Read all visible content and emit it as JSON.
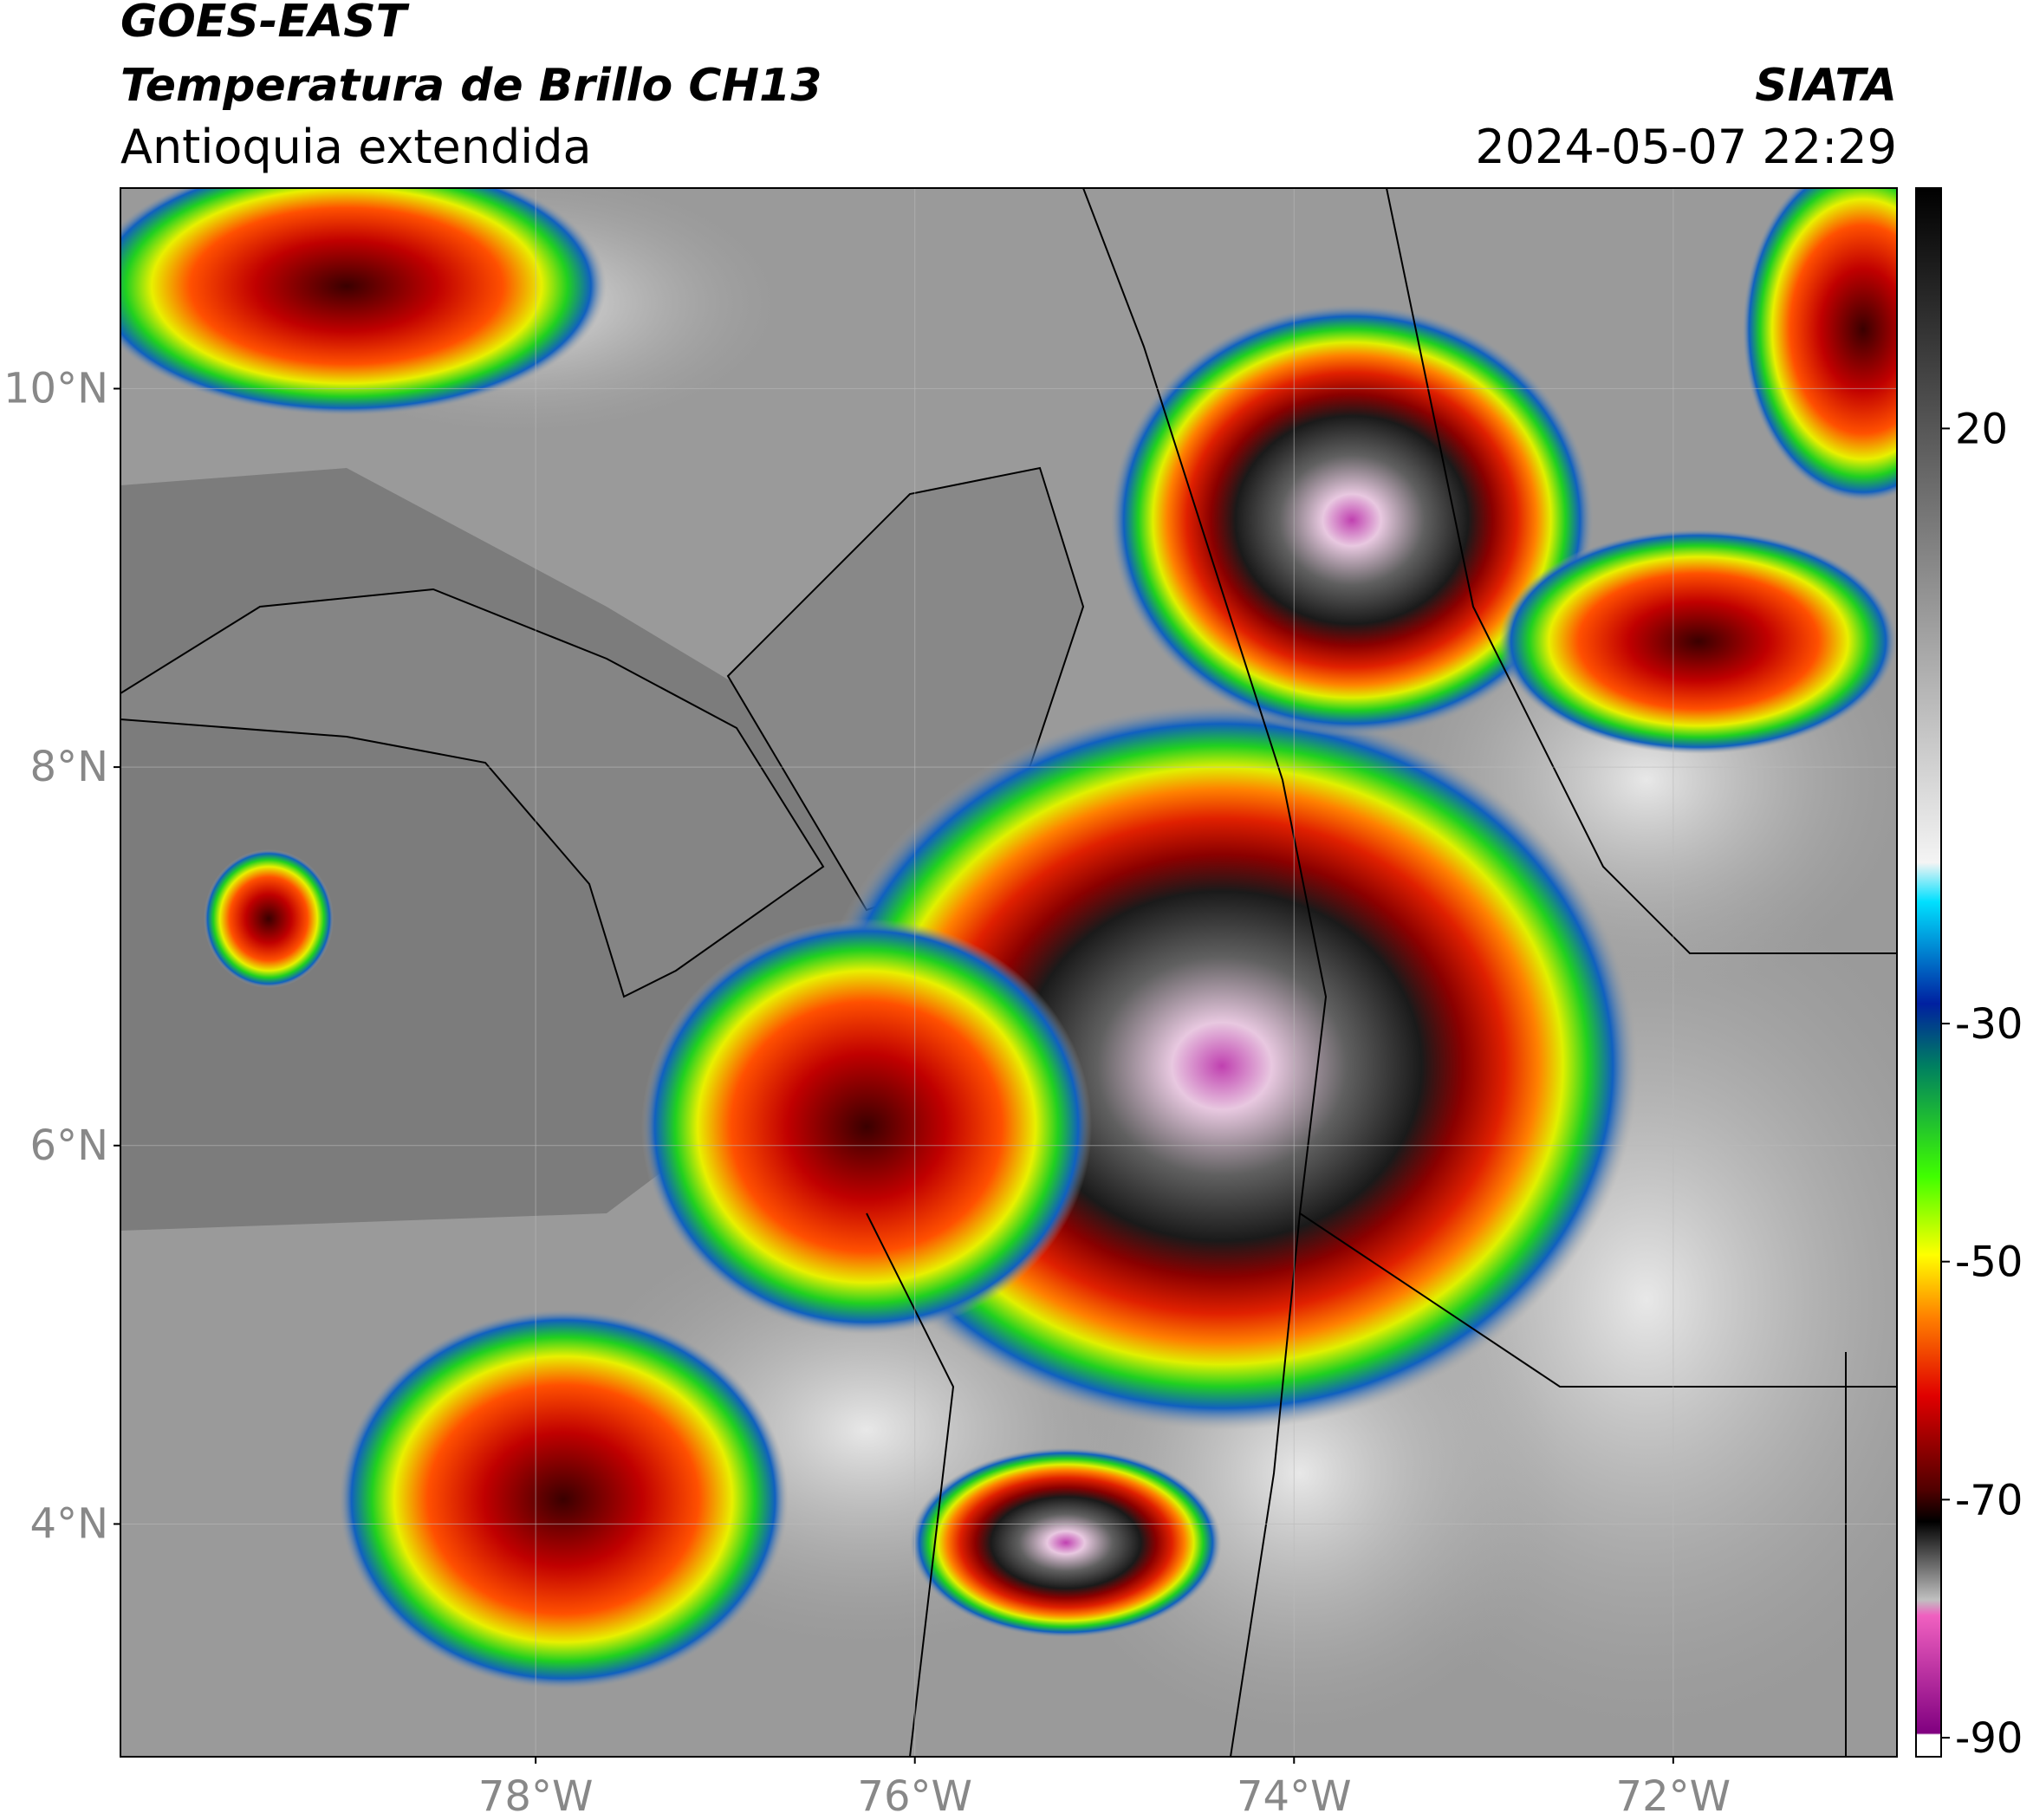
{
  "header": {
    "satellite": "GOES-EAST",
    "product": "Temperatura de Brillo CH13",
    "region": "Antioquia extendida",
    "agency": "SIATA",
    "timestamp": "2024-05-07 22:29"
  },
  "map": {
    "lon_lim": [
      -80.19,
      -70.82
    ],
    "lat_lim": [
      2.77,
      11.06
    ],
    "lat_ticks": [
      {
        "value": 10,
        "label": "10°N"
      },
      {
        "value": 8,
        "label": "8°N"
      },
      {
        "value": 6,
        "label": "6°N"
      },
      {
        "value": 4,
        "label": "4°N"
      }
    ],
    "lon_ticks": [
      {
        "value": -78,
        "label": "78°W"
      },
      {
        "value": -76,
        "label": "76°W"
      },
      {
        "value": -74,
        "label": "74°W"
      },
      {
        "value": -72,
        "label": "72°W"
      }
    ],
    "grid": true
  },
  "colorbar": {
    "lim": [
      -91.6,
      40.2
    ],
    "ticks": [
      20,
      -30,
      -50,
      -70,
      -90
    ]
  }
}
